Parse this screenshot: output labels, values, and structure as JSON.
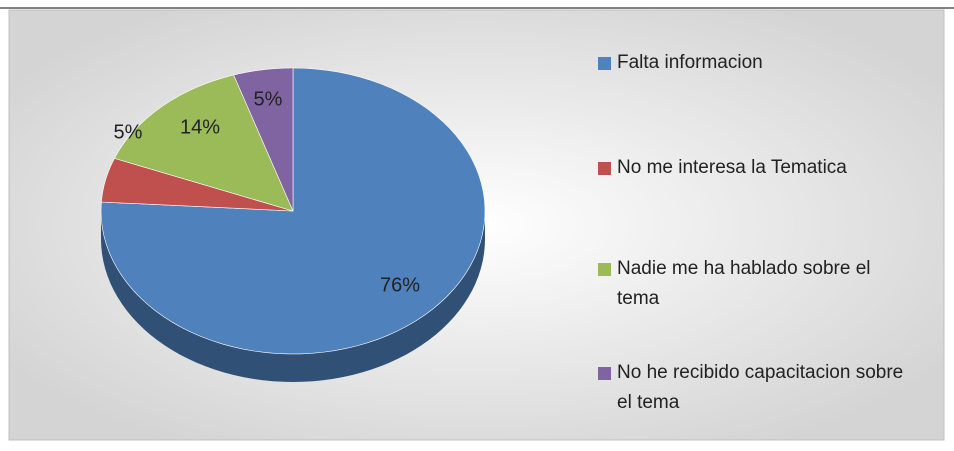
{
  "chart_data": {
    "type": "pie",
    "categories": [
      "Falta informacion",
      "No me interesa la Tematica",
      "Nadie me ha hablado sobre el tema",
      "No he recibido capacitacion sobre el tema"
    ],
    "values": [
      76,
      5,
      14,
      5
    ],
    "value_labels": [
      "76%",
      "5%",
      "14%",
      "5%"
    ],
    "colors": [
      "#4f81bd",
      "#c0504d",
      "#9bbb59",
      "#8064a2"
    ],
    "legend": "right"
  }
}
